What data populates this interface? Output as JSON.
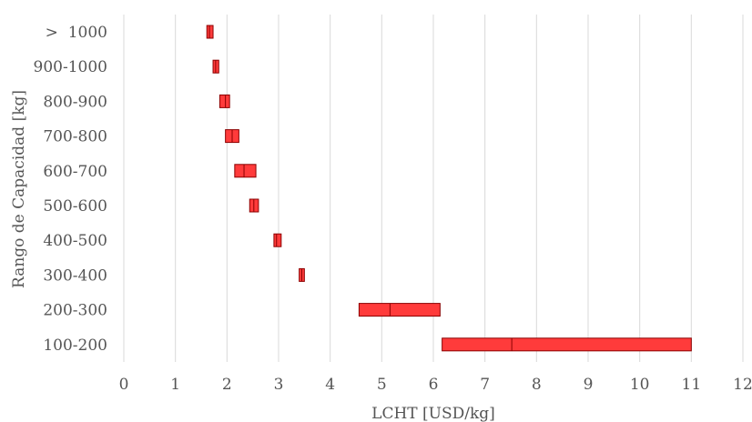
{
  "chart_data": {
    "type": "bar",
    "orientation": "horizontal-range",
    "title": "",
    "xlabel": "LCHT [USD/kg]",
    "ylabel": "Rango de Capacidad [kg]",
    "xlim": [
      0,
      12
    ],
    "xticks": [
      "0",
      "1",
      "2",
      "3",
      "4",
      "5",
      "6",
      "7",
      "8",
      "9",
      "10",
      "11",
      "12"
    ],
    "grid": true,
    "bar_color": "#ff3b3b",
    "edge_color": "#8b0000",
    "categories": [
      ">  1000",
      "900-1000",
      "800-900",
      "700-800",
      "600-700",
      "500-600",
      "400-500",
      "300-400",
      "200-300",
      "100-200"
    ],
    "series": [
      {
        "low": [
          1.61,
          1.73,
          1.86,
          1.97,
          2.15,
          2.44,
          2.91,
          3.4,
          4.56,
          6.17
        ],
        "median": [
          1.66,
          1.78,
          1.97,
          2.1,
          2.33,
          2.52,
          2.96,
          3.45,
          5.16,
          7.52
        ],
        "high": [
          1.73,
          1.84,
          2.05,
          2.23,
          2.56,
          2.61,
          3.05,
          3.5,
          6.13,
          11.0
        ]
      }
    ]
  }
}
